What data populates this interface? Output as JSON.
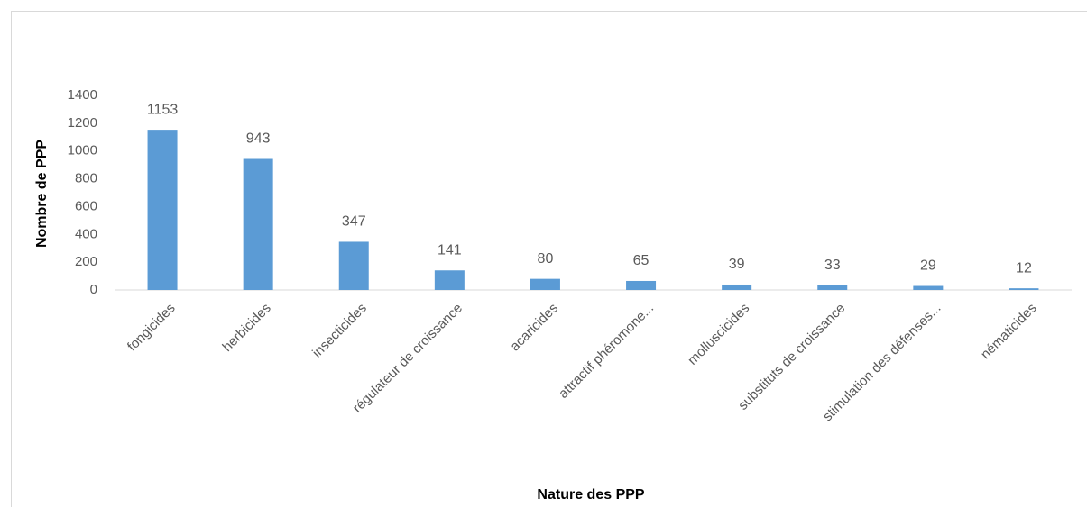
{
  "chart_data": {
    "type": "bar",
    "categories": [
      "fongicides",
      "herbicides",
      "insecticides",
      "régulateur de croissance",
      "acaricides",
      "attractif phéromone...",
      "molluscicides",
      "substituts de croissance",
      "stimulation des défenses...",
      "nématicides"
    ],
    "values": [
      1153,
      943,
      347,
      141,
      80,
      65,
      39,
      33,
      29,
      12
    ],
    "color": "#5b9bd5",
    "ylim": [
      0,
      1400
    ],
    "yticks": [
      0,
      200,
      400,
      600,
      800,
      1000,
      1200,
      1400
    ],
    "grid": false,
    "y_label": "Nombre de PPP",
    "x_label": "Nature des PPP"
  }
}
